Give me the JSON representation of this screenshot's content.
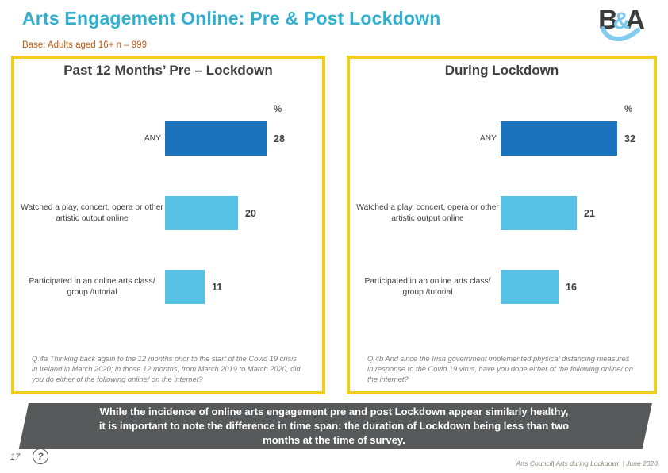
{
  "header": {
    "title": "Arts Engagement Online: Pre & Post Lockdown",
    "base_note": "Base: Adults aged 16+ n – 999",
    "logo": {
      "b": "B",
      "amp": "&",
      "a": "A"
    }
  },
  "colors": {
    "accent_teal": "#31AFCE",
    "base_orange": "#BE5A12",
    "panel_border_gold": "#EFCF1E",
    "bar_dark_blue": "#1B73BE",
    "bar_light_blue": "#56C1E4",
    "text_dark": "#3F3F3F",
    "footnote_gray": "#7F7F7F",
    "callout_gray": "#58595B",
    "logo_dark": "#3A3B3C",
    "logo_blue": "#76C7EB",
    "footer_olive": "#8B8878"
  },
  "chart_data": [
    {
      "type": "bar",
      "orientation": "horizontal",
      "title": "Past 12 Months’ Pre – Lockdown",
      "unit_label": "%",
      "categories": [
        "ANY",
        "Watched a play, concert, opera or other artistic output online",
        "Participated in an online arts class/ group /tutorial"
      ],
      "values": [
        28,
        20,
        11
      ],
      "bar_colors": [
        "#1B73BE",
        "#56C1E4",
        "#56C1E4"
      ],
      "xlim": [
        0,
        35
      ],
      "grid": false,
      "legend": "none",
      "footnote": "Q.4a Thinking back again to the 12 months prior to the start of the Covid 19 crisis in Ireland in March 2020; in those 12 months, from March 2019 to March 2020, did you do either of the following online/ on the internet?"
    },
    {
      "type": "bar",
      "orientation": "horizontal",
      "title": "During Lockdown",
      "unit_label": "%",
      "categories": [
        "ANY",
        "Watched a play, concert, opera or other artistic output online",
        "Participated in an online arts class/ group /tutorial"
      ],
      "values": [
        32,
        21,
        16
      ],
      "bar_colors": [
        "#1B73BE",
        "#56C1E4",
        "#56C1E4"
      ],
      "xlim": [
        0,
        35
      ],
      "grid": false,
      "legend": "none",
      "footnote": "Q.4b And since the Irish government implemented physical distancing measures in response to the Covid 19 virus, have you done either of the following online/ on the internet?"
    }
  ],
  "callout": {
    "lines": [
      "While the incidence of online arts engagement pre and post Lockdown appear similarly healthy,",
      "it is important to note the difference in time span: the duration of Lockdown being less than two",
      "months at the time of survey."
    ]
  },
  "footer": {
    "page_number": "17",
    "help_glyph": "?",
    "source": "Arts Council| Arts during Lockdown | June 2020"
  }
}
